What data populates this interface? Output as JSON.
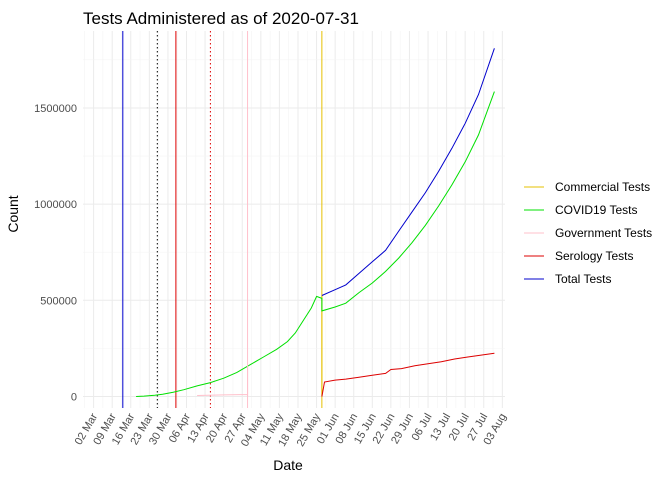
{
  "chart_data": {
    "type": "line",
    "title": "Tests Administered as of 2020-07-31",
    "xlabel": "Date",
    "ylabel": "Count",
    "x_ticks": [
      "02 Mar",
      "09 Mar",
      "16 Mar",
      "23 Mar",
      "30 Mar",
      "06 Apr",
      "13 Apr",
      "20 Apr",
      "27 Apr",
      "04 May",
      "11 May",
      "18 May",
      "25 May",
      "01 Jun",
      "08 Jun",
      "15 Jun",
      "22 Jun",
      "29 Jun",
      "06 Jul",
      "13 Jul",
      "20 Jul",
      "27 Jul",
      "03 Aug"
    ],
    "y_ticks": [
      "0",
      "500000",
      "1000000",
      "1500000"
    ],
    "y_tick_values": [
      0,
      500000,
      1000000,
      1500000
    ],
    "xlim": [
      "2020-02-27",
      "2020-08-04"
    ],
    "ylim": [
      -60000,
      1900000
    ],
    "grid": true,
    "legend_position": "right",
    "series": [
      {
        "name": "Commercial Tests",
        "color": "#E6C000",
        "points": [
          [
            "2020-05-27",
            525000
          ],
          [
            "2020-05-27",
            445000
          ],
          [
            "2020-05-27",
            0
          ]
        ]
      },
      {
        "name": "COVID19 Tests",
        "color": "#00E000",
        "points": [
          [
            "2020-03-18",
            0
          ],
          [
            "2020-03-21",
            2000
          ],
          [
            "2020-03-25",
            6000
          ],
          [
            "2020-03-28",
            12000
          ],
          [
            "2020-04-01",
            22000
          ],
          [
            "2020-04-05",
            35000
          ],
          [
            "2020-04-10",
            55000
          ],
          [
            "2020-04-15",
            72000
          ],
          [
            "2020-04-20",
            95000
          ],
          [
            "2020-04-25",
            125000
          ],
          [
            "2020-04-30",
            165000
          ],
          [
            "2020-05-05",
            205000
          ],
          [
            "2020-05-10",
            245000
          ],
          [
            "2020-05-14",
            285000
          ],
          [
            "2020-05-17",
            330000
          ],
          [
            "2020-05-20",
            395000
          ],
          [
            "2020-05-23",
            460000
          ],
          [
            "2020-05-25",
            520000
          ],
          [
            "2020-05-27",
            510000
          ],
          [
            "2020-05-27",
            445000
          ],
          [
            "2020-06-01",
            465000
          ],
          [
            "2020-06-05",
            485000
          ],
          [
            "2020-06-10",
            540000
          ],
          [
            "2020-06-15",
            590000
          ],
          [
            "2020-06-20",
            650000
          ],
          [
            "2020-06-25",
            720000
          ],
          [
            "2020-06-30",
            800000
          ],
          [
            "2020-07-05",
            890000
          ],
          [
            "2020-07-10",
            990000
          ],
          [
            "2020-07-15",
            1100000
          ],
          [
            "2020-07-20",
            1220000
          ],
          [
            "2020-07-25",
            1360000
          ],
          [
            "2020-07-31",
            1585000
          ]
        ]
      },
      {
        "name": "Government Tests",
        "color": "#FFC0CB",
        "points": [
          [
            "2020-04-10",
            5000
          ],
          [
            "2020-04-20",
            8000
          ],
          [
            "2020-04-29",
            10000
          ],
          [
            "2020-04-29",
            165000
          ],
          [
            "2020-04-29",
            0
          ]
        ]
      },
      {
        "name": "Serology Tests",
        "color": "#DD0000",
        "points": [
          [
            "2020-05-27",
            0
          ],
          [
            "2020-05-28",
            75000
          ],
          [
            "2020-06-01",
            85000
          ],
          [
            "2020-06-05",
            90000
          ],
          [
            "2020-06-10",
            100000
          ],
          [
            "2020-06-15",
            110000
          ],
          [
            "2020-06-20",
            120000
          ],
          [
            "2020-06-22",
            140000
          ],
          [
            "2020-06-26",
            145000
          ],
          [
            "2020-07-01",
            160000
          ],
          [
            "2020-07-06",
            170000
          ],
          [
            "2020-07-11",
            180000
          ],
          [
            "2020-07-16",
            195000
          ],
          [
            "2020-07-21",
            205000
          ],
          [
            "2020-07-26",
            215000
          ],
          [
            "2020-07-31",
            225000
          ]
        ]
      },
      {
        "name": "Total Tests",
        "color": "#0000CD",
        "points": [
          [
            "2020-05-27",
            525000
          ],
          [
            "2020-06-01",
            555000
          ],
          [
            "2020-06-05",
            580000
          ],
          [
            "2020-06-10",
            640000
          ],
          [
            "2020-06-15",
            700000
          ],
          [
            "2020-06-20",
            760000
          ],
          [
            "2020-06-25",
            860000
          ],
          [
            "2020-06-30",
            960000
          ],
          [
            "2020-07-05",
            1060000
          ],
          [
            "2020-07-10",
            1170000
          ],
          [
            "2020-07-15",
            1290000
          ],
          [
            "2020-07-20",
            1420000
          ],
          [
            "2020-07-25",
            1570000
          ],
          [
            "2020-07-31",
            1810000
          ]
        ]
      }
    ],
    "vlines": [
      {
        "date": "2020-03-13",
        "color": "#0000CD",
        "style": "solid"
      },
      {
        "date": "2020-03-26",
        "color": "#000000",
        "style": "dotted"
      },
      {
        "date": "2020-04-02",
        "color": "#DD0000",
        "style": "solid"
      },
      {
        "date": "2020-04-15",
        "color": "#DD0000",
        "style": "dotted"
      },
      {
        "date": "2020-04-29",
        "color": "#FFC0CB",
        "style": "solid"
      },
      {
        "date": "2020-05-27",
        "color": "#E6C000",
        "style": "solid"
      }
    ]
  }
}
